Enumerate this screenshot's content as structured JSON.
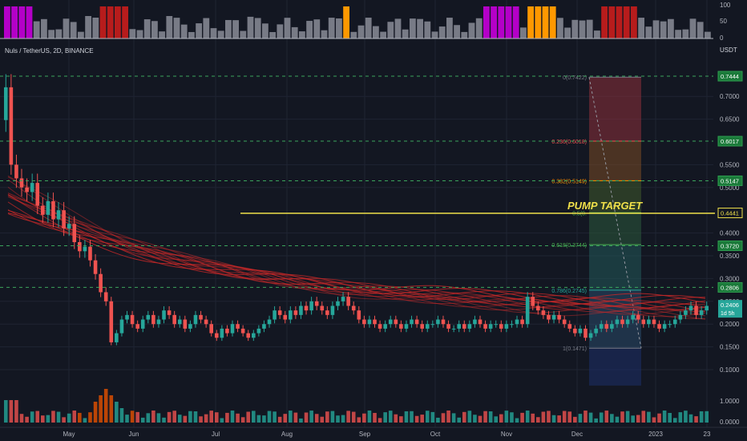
{
  "header": {
    "symbol": "Nuls / TetherUS, 2D, BINANCE",
    "currency": "USDT"
  },
  "oscillator_axis": [
    "100",
    "50",
    "0"
  ],
  "volume_axis": [
    "1.0000",
    "0.0000"
  ],
  "annotation": {
    "text": "PUMP TARGET",
    "color": "#f0e04a"
  },
  "price_badges": {
    "current": {
      "value": "0.2406",
      "sub": "1d 5h",
      "color": "#26a69a"
    }
  },
  "colors": {
    "background": "#131722",
    "up": "#26a69a",
    "down": "#ef5350",
    "grid": "#1f2433",
    "fib_line": "#3ba55c"
  },
  "chart_data": {
    "type": "candlestick",
    "title": "Nuls / TetherUS, 2D, BINANCE",
    "x_ticks": [
      "May",
      "Jun",
      "Jul",
      "Aug",
      "Sep",
      "Oct",
      "Nov",
      "Dec",
      "2023",
      "23"
    ],
    "y_ticks": [
      "0.7000",
      "0.6500",
      "0.5500",
      "0.5000",
      "0.4000",
      "0.3500",
      "0.3000",
      "0.2500",
      "0.2000",
      "0.1500",
      "0.1000"
    ],
    "ylim": [
      0.07,
      0.76
    ],
    "price_levels": [
      {
        "label": "0.7444",
        "value": 0.7444
      },
      {
        "label": "0.6017",
        "value": 0.6017
      },
      {
        "label": "0.5147",
        "value": 0.5147
      },
      {
        "label": "0.4441",
        "value": 0.4441
      },
      {
        "label": "0.3720",
        "value": 0.372
      },
      {
        "label": "0.2806",
        "value": 0.2806
      }
    ],
    "fib_levels": [
      {
        "label": "0(0.7422)",
        "value": 0.7422,
        "color": "#787b86"
      },
      {
        "label": "0.236(0.6018)",
        "value": 0.6018,
        "color": "#ef5350"
      },
      {
        "label": "0.382(0.5149)",
        "value": 0.5149,
        "color": "#ff9800"
      },
      {
        "label": "0.5(0.",
        "value": 0.4446,
        "color": "#4caf50"
      },
      {
        "label": "0.618(0.3744)",
        "value": 0.3744,
        "color": "#4caf50"
      },
      {
        "label": "0.786(0.2745)",
        "value": 0.2745,
        "color": "#26a69a"
      },
      {
        "label": "1(0.1471)",
        "value": 0.1471,
        "color": "#787b86"
      }
    ],
    "target_level": 0.4441,
    "closes": [
      0.72,
      0.55,
      0.52,
      0.5,
      0.49,
      0.51,
      0.46,
      0.44,
      0.47,
      0.43,
      0.45,
      0.41,
      0.42,
      0.38,
      0.36,
      0.37,
      0.34,
      0.31,
      0.27,
      0.25,
      0.16,
      0.18,
      0.21,
      0.22,
      0.2,
      0.19,
      0.21,
      0.22,
      0.2,
      0.21,
      0.23,
      0.22,
      0.2,
      0.21,
      0.19,
      0.2,
      0.22,
      0.21,
      0.2,
      0.18,
      0.17,
      0.19,
      0.18,
      0.2,
      0.19,
      0.18,
      0.17,
      0.18,
      0.19,
      0.2,
      0.21,
      0.23,
      0.22,
      0.21,
      0.23,
      0.22,
      0.24,
      0.23,
      0.25,
      0.24,
      0.23,
      0.22,
      0.24,
      0.25,
      0.26,
      0.24,
      0.23,
      0.21,
      0.2,
      0.21,
      0.2,
      0.19,
      0.2,
      0.21,
      0.2,
      0.19,
      0.2,
      0.21,
      0.2,
      0.19,
      0.2,
      0.2,
      0.21,
      0.2,
      0.19,
      0.19,
      0.2,
      0.19,
      0.2,
      0.21,
      0.2,
      0.19,
      0.2,
      0.2,
      0.19,
      0.2,
      0.2,
      0.21,
      0.2,
      0.26,
      0.24,
      0.23,
      0.22,
      0.21,
      0.22,
      0.21,
      0.2,
      0.19,
      0.18,
      0.19,
      0.17,
      0.18,
      0.19,
      0.2,
      0.19,
      0.2,
      0.21,
      0.2,
      0.21,
      0.22,
      0.21,
      0.2,
      0.21,
      0.2,
      0.19,
      0.2,
      0.2,
      0.21,
      0.22,
      0.23,
      0.24,
      0.22,
      0.23,
      0.24
    ]
  }
}
